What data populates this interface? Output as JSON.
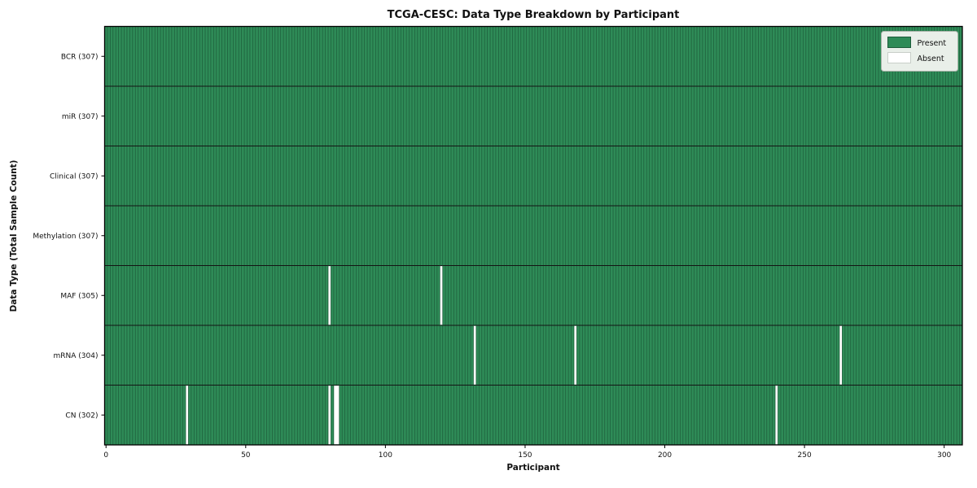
{
  "chart_data": {
    "type": "heatmap",
    "title": "TCGA-CESC: Data Type Breakdown by Participant",
    "xlabel": "Participant",
    "ylabel": "Data Type (Total Sample Count)",
    "x_ticks": [
      0,
      50,
      100,
      150,
      200,
      250,
      300
    ],
    "x_range": [
      -0.5,
      306.5
    ],
    "n_participants": 307,
    "grid": false,
    "legend_position": "upper right",
    "legend": [
      {
        "label": "Present",
        "color": "#2e8b57"
      },
      {
        "label": "Absent",
        "color": "#ffffff"
      }
    ],
    "rows": [
      {
        "label": "BCR (307)",
        "data_type": "BCR",
        "total_samples": 307,
        "absent_participants": []
      },
      {
        "label": "miR (307)",
        "data_type": "miR",
        "total_samples": 307,
        "absent_participants": []
      },
      {
        "label": "Clinical (307)",
        "data_type": "Clinical",
        "total_samples": 307,
        "absent_participants": []
      },
      {
        "label": "Methylation (307)",
        "data_type": "Methylation",
        "total_samples": 307,
        "absent_participants": []
      },
      {
        "label": "MAF (305)",
        "data_type": "MAF",
        "total_samples": 305,
        "absent_participants": [
          80,
          120
        ]
      },
      {
        "label": "mRNA (304)",
        "data_type": "mRNA",
        "total_samples": 304,
        "absent_participants": [
          132,
          168,
          263
        ]
      },
      {
        "label": "CN (302)",
        "data_type": "CN",
        "total_samples": 302,
        "absent_participants": [
          29,
          80,
          82,
          83,
          240
        ]
      }
    ],
    "colors": {
      "present": "#2e8b57",
      "absent": "#ffffff",
      "column_edge": "#1d5c3a",
      "row_separator": "#141414",
      "spine": "#000000",
      "legend_bg": "#e9efe9",
      "legend_border": "#a9b4a9",
      "text": "#111111"
    }
  }
}
